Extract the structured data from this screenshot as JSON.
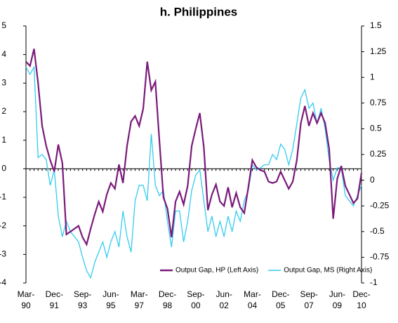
{
  "chart_data": {
    "type": "line",
    "title": "h. Philippines",
    "categories": [
      "Mar-90",
      null,
      null,
      null,
      null,
      null,
      null,
      "Dec-91",
      null,
      null,
      null,
      null,
      null,
      null,
      "Sep-93",
      null,
      null,
      null,
      null,
      null,
      null,
      "Jun-95",
      null,
      null,
      null,
      null,
      null,
      null,
      "Mar-97",
      null,
      null,
      null,
      null,
      null,
      null,
      "Dec-98",
      null,
      null,
      null,
      null,
      null,
      null,
      "Sep-00",
      null,
      null,
      null,
      null,
      null,
      null,
      "Jun-02",
      null,
      null,
      null,
      null,
      null,
      null,
      "Mar-04",
      null,
      null,
      null,
      null,
      null,
      null,
      "Dec-05",
      null,
      null,
      null,
      null,
      null,
      null,
      "Sep-07",
      null,
      null,
      null,
      null,
      null,
      null,
      "Jun-09",
      null,
      null,
      null,
      null,
      null,
      "Dec-10"
    ],
    "series": [
      {
        "name": "Output Gap, HP (Left Axis)",
        "color": "#7a1a7a",
        "axis": "y",
        "values": [
          3.75,
          3.6,
          4.2,
          3.0,
          1.5,
          0.8,
          0.3,
          -0.1,
          0.85,
          0.2,
          -2.3,
          -2.2,
          -2.1,
          -2.0,
          -2.4,
          -2.65,
          -2.1,
          -1.6,
          -1.15,
          -1.5,
          -0.9,
          -0.5,
          -0.7,
          0.15,
          -0.5,
          0.8,
          1.65,
          1.85,
          1.5,
          2.1,
          3.75,
          2.75,
          3.05,
          1.0,
          -1.0,
          -1.4,
          -2.4,
          -1.15,
          -0.8,
          -1.25,
          -0.6,
          0.8,
          1.4,
          1.95,
          0.75,
          -1.45,
          -0.9,
          -0.55,
          -1.15,
          -1.3,
          -0.65,
          -1.35,
          -0.85,
          -1.35,
          -1.55,
          -0.65,
          0.3,
          0.05,
          -0.05,
          -0.1,
          -0.45,
          -0.5,
          -0.45,
          -0.1,
          -0.4,
          -0.7,
          -0.45,
          0.3,
          1.6,
          2.2,
          1.5,
          1.95,
          1.6,
          1.95,
          1.6,
          0.7,
          -1.75,
          -0.35,
          0.1,
          -0.6,
          -0.9,
          -1.2,
          -1.05,
          -0.15
        ]
      },
      {
        "name": "Output Gap, MS (Right Axis)",
        "color": "#33ccee",
        "axis": "y2",
        "values": [
          1.1,
          1.03,
          1.1,
          0.22,
          0.25,
          0.2,
          -0.05,
          0.1,
          -0.35,
          -0.55,
          -0.4,
          -0.5,
          -0.55,
          -0.6,
          -0.75,
          -0.88,
          -0.95,
          -0.8,
          -0.7,
          -0.6,
          -0.75,
          -0.6,
          -0.5,
          -0.65,
          -0.3,
          -0.55,
          -0.7,
          -0.2,
          -0.05,
          -0.05,
          -0.2,
          0.45,
          -0.05,
          -0.15,
          -0.1,
          -0.4,
          -0.65,
          -0.3,
          -0.3,
          -0.6,
          -0.4,
          -0.1,
          0.05,
          0.1,
          -0.2,
          -0.5,
          -0.35,
          -0.55,
          -0.4,
          -0.55,
          -0.35,
          -0.5,
          -0.3,
          -0.4,
          -0.2,
          -0.1,
          0.15,
          0.1,
          0.12,
          0.15,
          0.15,
          0.25,
          0.2,
          0.35,
          0.3,
          0.15,
          0.3,
          0.55,
          0.8,
          0.88,
          0.7,
          0.75,
          0.55,
          0.7,
          0.5,
          0.2,
          0.0,
          0.12,
          0.12,
          -0.15,
          -0.2,
          -0.25,
          -0.15,
          -0.05
        ]
      }
    ],
    "ylim": [
      -4,
      5
    ],
    "yticks": [
      -4,
      -3,
      -2,
      -1,
      0,
      1,
      2,
      3,
      4,
      5
    ],
    "y2lim": [
      -1,
      1.5
    ],
    "y2ticks": [
      -1,
      -0.75,
      -0.5,
      -0.25,
      0,
      0.25,
      0.5,
      0.75,
      1,
      1.25,
      1.5
    ],
    "grid": false,
    "legend": "lower right"
  }
}
